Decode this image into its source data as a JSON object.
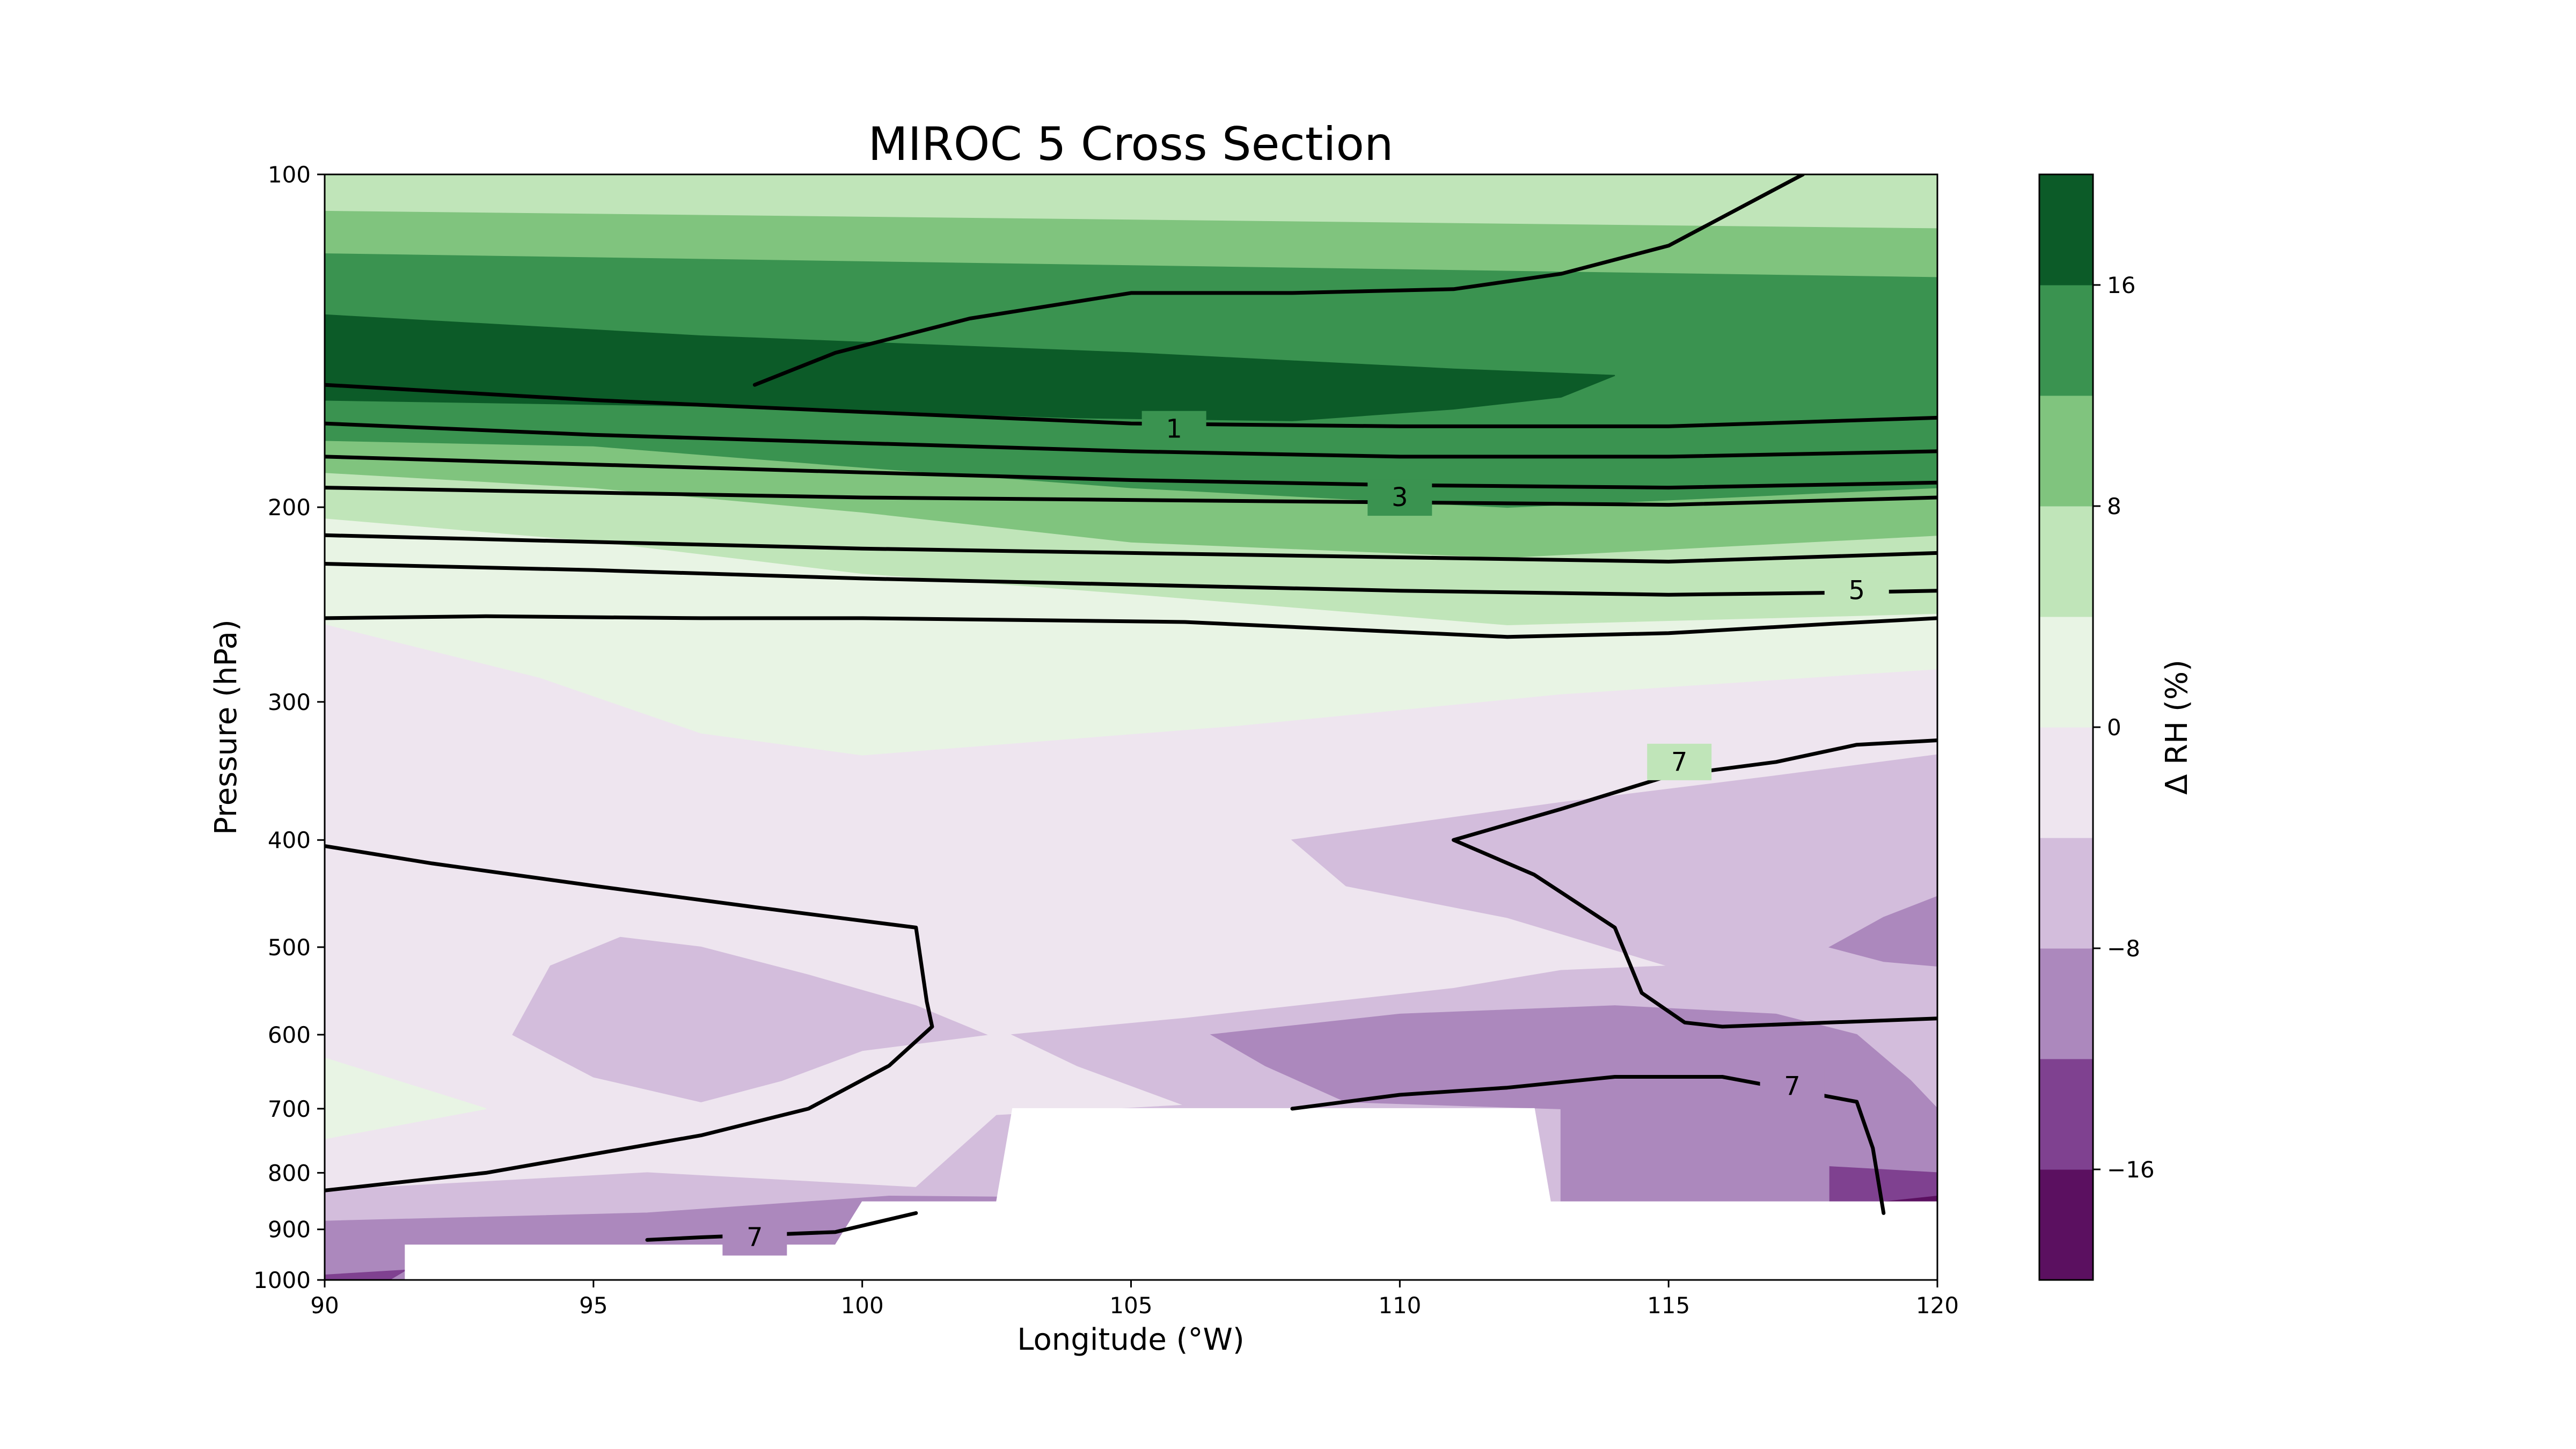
{
  "chart_data": {
    "type": "contour",
    "title": "MIROC 5 Cross Section",
    "xlabel": "Longitude (°W)",
    "ylabel": "Pressure (hPa)",
    "xlim": [
      90,
      120
    ],
    "ylim": [
      1000,
      100
    ],
    "y_scale": "log",
    "x_ticks": [
      {
        "value": 90,
        "label": "90"
      },
      {
        "value": 95,
        "label": "95"
      },
      {
        "value": 100,
        "label": "100"
      },
      {
        "value": 105,
        "label": "105"
      },
      {
        "value": 110,
        "label": "110"
      },
      {
        "value": 115,
        "label": "115"
      },
      {
        "value": 120,
        "label": "120"
      }
    ],
    "y_ticks": [
      {
        "value": 100,
        "label": "100"
      },
      {
        "value": 200,
        "label": "200"
      },
      {
        "value": 300,
        "label": "300"
      },
      {
        "value": 400,
        "label": "400"
      },
      {
        "value": 500,
        "label": "500"
      },
      {
        "value": 600,
        "label": "600"
      },
      {
        "value": 700,
        "label": "700"
      },
      {
        "value": 800,
        "label": "800"
      },
      {
        "value": 900,
        "label": "900"
      },
      {
        "value": 1000,
        "label": "1000"
      }
    ],
    "colorbar": {
      "label": "Δ RH (%)",
      "levels": [
        -20,
        -16,
        -12,
        -8,
        -4,
        0,
        4,
        8,
        12,
        16,
        20
      ],
      "colors": [
        "#5b1060",
        "#7f4190",
        "#ac88bd",
        "#d3bddc",
        "#eee5ef",
        "#e8f4e4",
        "#c0e5b9",
        "#80c47e",
        "#3a9350",
        "#0c5b28"
      ],
      "ticks": [
        {
          "value": -16,
          "label": "−16"
        },
        {
          "value": -8,
          "label": "−8"
        },
        {
          "value": 0,
          "label": "0"
        },
        {
          "value": 8,
          "label": "8"
        },
        {
          "value": 16,
          "label": "16"
        }
      ]
    },
    "filled_regions": [
      {
        "level": "4 to 8",
        "color": "#c0e5b9",
        "points": [
          [
            90,
            100
          ],
          [
            120,
            100
          ],
          [
            120,
            250
          ],
          [
            112,
            256
          ],
          [
            105,
            240
          ],
          [
            100,
            230
          ],
          [
            95,
            215
          ],
          [
            90,
            205
          ]
        ]
      },
      {
        "level": "8 to 12",
        "color": "#80c47e",
        "points": [
          [
            90,
            108
          ],
          [
            120,
            112
          ],
          [
            120,
            212
          ],
          [
            112,
            222
          ],
          [
            105,
            215
          ],
          [
            100,
            202
          ],
          [
            95,
            192
          ],
          [
            90,
            186
          ]
        ]
      },
      {
        "level": "12 to 16",
        "color": "#3a9350",
        "points": [
          [
            90,
            118
          ],
          [
            120,
            124
          ],
          [
            120,
            192
          ],
          [
            112,
            200
          ],
          [
            105,
            192
          ],
          [
            100,
            184
          ],
          [
            95,
            176
          ],
          [
            90,
            174
          ]
        ]
      },
      {
        "level": "16 to 20",
        "color": "#0c5b28",
        "points": [
          [
            90,
            134
          ],
          [
            97,
            140
          ],
          [
            105,
            145
          ],
          [
            111,
            150
          ],
          [
            114,
            152
          ],
          [
            113,
            159
          ],
          [
            111,
            163
          ],
          [
            108,
            167
          ],
          [
            104,
            166
          ],
          [
            97,
            162
          ],
          [
            90,
            160
          ]
        ]
      },
      {
        "level": "0 to 4",
        "color": "#e8f4e4",
        "points": [
          [
            90,
            205
          ],
          [
            95,
            215
          ],
          [
            100,
            230
          ],
          [
            105,
            240
          ],
          [
            112,
            256
          ],
          [
            120,
            250
          ],
          [
            120,
            280
          ],
          [
            113,
            295
          ],
          [
            107,
            315
          ],
          [
            100,
            335
          ],
          [
            97,
            320
          ],
          [
            94,
            285
          ],
          [
            90,
            255
          ]
        ]
      },
      {
        "level": "0 to 4",
        "color": "#e8f4e4",
        "points": [
          [
            90,
            630
          ],
          [
            93,
            700
          ],
          [
            90,
            745
          ]
        ]
      },
      {
        "level": "-8 to -4",
        "color": "#d3bddc",
        "points": [
          [
            120,
            335
          ],
          [
            117,
            350
          ],
          [
            113,
            370
          ],
          [
            108,
            400
          ],
          [
            109,
            440
          ],
          [
            112,
            470
          ],
          [
            115,
            520
          ],
          [
            113,
            525
          ],
          [
            111,
            545
          ],
          [
            106,
            580
          ],
          [
            102.8,
            600
          ],
          [
            104,
            640
          ],
          [
            106,
            695
          ],
          [
            102.5,
            710
          ],
          [
            101,
            825
          ],
          [
            96,
            800
          ],
          [
            92,
            820
          ],
          [
            90,
            830
          ],
          [
            90,
            1000
          ],
          [
            120,
            1000
          ]
        ]
      },
      {
        "level": "-8 to -4",
        "color": "#d3bddc",
        "points": [
          [
            93.5,
            600
          ],
          [
            94.2,
            520
          ],
          [
            95.5,
            490
          ],
          [
            97,
            500
          ],
          [
            99,
            530
          ],
          [
            101,
            565
          ],
          [
            102.3,
            600
          ],
          [
            100,
            620
          ],
          [
            98.5,
            660
          ],
          [
            97,
            690
          ],
          [
            95,
            655
          ]
        ]
      },
      {
        "level": "-12 to -8",
        "color": "#ac88bd",
        "points": [
          [
            120,
            450
          ],
          [
            119,
            470
          ],
          [
            118,
            500
          ],
          [
            119,
            515
          ],
          [
            120,
            520
          ]
        ]
      },
      {
        "level": "-12 to -8",
        "color": "#ac88bd",
        "points": [
          [
            106.5,
            600
          ],
          [
            110,
            575
          ],
          [
            114,
            565
          ],
          [
            117,
            575
          ],
          [
            118.5,
            600
          ],
          [
            119.5,
            660
          ],
          [
            120,
            700
          ],
          [
            120,
            1000
          ],
          [
            90,
            1000
          ],
          [
            90,
            885
          ],
          [
            96,
            870
          ],
          [
            100.5,
            840
          ],
          [
            113,
            850
          ],
          [
            113,
            700
          ],
          [
            109,
            690
          ],
          [
            107.5,
            640
          ]
        ]
      },
      {
        "level": "-16 to -12",
        "color": "#7f4190",
        "points": [
          [
            118,
            790
          ],
          [
            120,
            800
          ],
          [
            120,
            1000
          ],
          [
            118,
            1000
          ]
        ]
      },
      {
        "level": "-16 to -12",
        "color": "#7f4190",
        "points": [
          [
            90,
            990
          ],
          [
            91.5,
            980
          ],
          [
            91.2,
            1000
          ],
          [
            90,
            1000
          ]
        ]
      },
      {
        "level": "-20 to -16",
        "color": "#5b1060",
        "points": [
          [
            119,
            850
          ],
          [
            120,
            840
          ],
          [
            120,
            1000
          ],
          [
            119,
            1000
          ]
        ]
      }
    ],
    "masked_regions": [
      {
        "points": [
          [
            102.8,
            700
          ],
          [
            112.5,
            700
          ],
          [
            112.8,
            850
          ],
          [
            120,
            850
          ],
          [
            120,
            930
          ],
          [
            91.5,
            930
          ],
          [
            91.5,
            1000
          ],
          [
            120,
            1000
          ],
          [
            120,
            1000
          ],
          [
            91.5,
            1000
          ],
          [
            91.5,
            930
          ],
          [
            99.5,
            930
          ],
          [
            100,
            850
          ],
          [
            102.5,
            850
          ]
        ]
      }
    ],
    "contours": [
      {
        "label": "",
        "points": [
          [
            98,
            155
          ],
          [
            99.5,
            145
          ],
          [
            102,
            135
          ],
          [
            105,
            128
          ],
          [
            108,
            128
          ],
          [
            111,
            127
          ],
          [
            113,
            123
          ],
          [
            115,
            116
          ],
          [
            117.5,
            100
          ]
        ]
      },
      {
        "label": "1",
        "label_at": [
          105.8,
          170
        ],
        "points": [
          [
            90,
            155
          ],
          [
            95,
            160
          ],
          [
            100,
            164
          ],
          [
            105,
            168
          ],
          [
            110,
            169
          ],
          [
            115,
            169
          ],
          [
            120,
            166
          ]
        ]
      },
      {
        "label": "",
        "points": [
          [
            90,
            168
          ],
          [
            95,
            172
          ],
          [
            100,
            175
          ],
          [
            105,
            178
          ],
          [
            110,
            180
          ],
          [
            115,
            180
          ],
          [
            120,
            178
          ]
        ]
      },
      {
        "label": "",
        "points": [
          [
            90,
            180
          ],
          [
            95,
            183
          ],
          [
            100,
            186
          ],
          [
            105,
            189
          ],
          [
            110,
            191
          ],
          [
            115,
            192
          ],
          [
            120,
            190
          ]
        ]
      },
      {
        "label": "3",
        "label_at": [
          110,
          196
        ],
        "points": [
          [
            90,
            192
          ],
          [
            95,
            194
          ],
          [
            100,
            196
          ],
          [
            105,
            197
          ],
          [
            110,
            198
          ],
          [
            115,
            199
          ],
          [
            120,
            196
          ]
        ]
      },
      {
        "label": "",
        "points": [
          [
            90,
            212
          ],
          [
            95,
            215
          ],
          [
            100,
            218
          ],
          [
            105,
            220
          ],
          [
            110,
            222
          ],
          [
            115,
            224
          ],
          [
            120,
            220
          ]
        ]
      },
      {
        "label": "5",
        "label_at": [
          118.5,
          238
        ],
        "points": [
          [
            90,
            225
          ],
          [
            95,
            228
          ],
          [
            100,
            232
          ],
          [
            105,
            235
          ],
          [
            110,
            238
          ],
          [
            115,
            240
          ],
          [
            118,
            239
          ],
          [
            120,
            238
          ]
        ]
      },
      {
        "label": "",
        "points": [
          [
            90,
            252
          ],
          [
            93,
            251
          ],
          [
            97,
            252
          ],
          [
            100,
            252
          ],
          [
            106,
            254
          ],
          [
            112,
            262
          ],
          [
            115,
            260
          ],
          [
            118,
            255
          ],
          [
            120,
            252
          ]
        ]
      },
      {
        "label": "7",
        "label_at": [
          115.2,
          340
        ],
        "points": [
          [
            120,
            325
          ],
          [
            118.5,
            328
          ],
          [
            117,
            340
          ],
          [
            115,
            350
          ],
          [
            113,
            375
          ],
          [
            111,
            400
          ],
          [
            112.5,
            430
          ],
          [
            114,
            480
          ],
          [
            114.5,
            550
          ],
          [
            115.3,
            585
          ],
          [
            116,
            590
          ],
          [
            118,
            585
          ],
          [
            120,
            580
          ]
        ]
      },
      {
        "label": "",
        "points": [
          [
            90,
            405
          ],
          [
            92,
            420
          ],
          [
            95,
            440
          ],
          [
            98,
            460
          ],
          [
            101,
            480
          ],
          [
            101.2,
            560
          ],
          [
            101.3,
            590
          ],
          [
            100.5,
            640
          ],
          [
            99,
            700
          ],
          [
            97,
            740
          ],
          [
            93,
            800
          ],
          [
            90,
            830
          ]
        ]
      },
      {
        "label": "7",
        "label_at": [
          117.3,
          668
        ],
        "points": [
          [
            108,
            700
          ],
          [
            110,
            680
          ],
          [
            112,
            670
          ],
          [
            114,
            655
          ],
          [
            116,
            655
          ],
          [
            118.5,
            690
          ],
          [
            118.8,
            760
          ],
          [
            119,
            870
          ]
        ]
      },
      {
        "label": "7",
        "label_at": [
          98,
          915
        ],
        "points": [
          [
            96,
            920
          ],
          [
            97,
            915
          ],
          [
            99.5,
            905
          ],
          [
            101,
            870
          ]
        ]
      }
    ]
  }
}
